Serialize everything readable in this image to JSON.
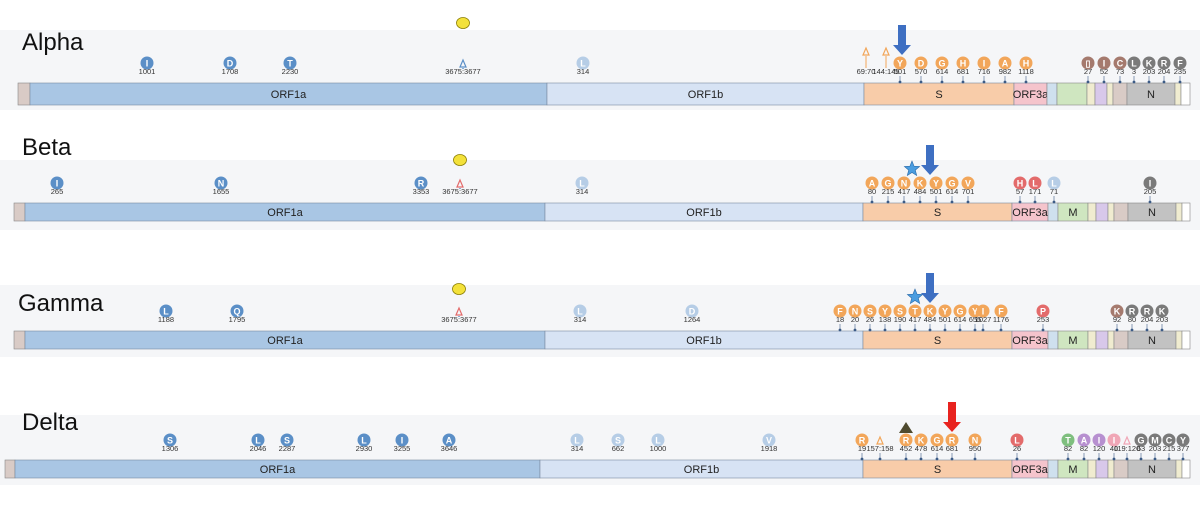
{
  "figure": {
    "type": "genome-mutation-map"
  },
  "gene_labels": {
    "orf1a": "ORF1a",
    "orf1b": "ORF1b",
    "s": "S",
    "orf3a": "ORF3a",
    "m": "M",
    "n": "N"
  },
  "colors": {
    "orf1a": "#a9c6e4",
    "orf1b": "#d7e3f4",
    "s": "#f8cca9",
    "orf3a": "#f5c4cc",
    "m": "#cfe6c0",
    "n": "#c2c2c2",
    "orf7a": "#d8c8ea",
    "small": "#f0ecd0",
    "utr": "#d9cbc6",
    "e": "#cfe0ee",
    "blue": "#5b8fc7",
    "lightblue": "#b6cde6",
    "orange": "#f2a65a",
    "red": "#e36b6b",
    "brown": "#a57a6e",
    "gray": "#7a7a7a",
    "purple": "#b790d0",
    "pink": "#f0a6b6",
    "green": "#7fbf7f",
    "yellow": "#f3e13a",
    "arrow_blue": "#3e6fc2",
    "arrow_red": "#e8231f",
    "star": "#4a9de0",
    "triangle": "#4e4a2e"
  },
  "variants": [
    {
      "name": "Alpha",
      "orf1b_mutations": [
        {
          "aa": "L",
          "pos": "314",
          "color": "lightblue"
        }
      ],
      "orf1a_mutations": [
        {
          "aa": "I",
          "pos": "1001",
          "color": "blue"
        },
        {
          "aa": "D",
          "pos": "1708",
          "color": "blue"
        },
        {
          "aa": "T",
          "pos": "2230",
          "color": "blue"
        }
      ],
      "deletion_label": "3675:3677",
      "s_deletion_labels": [
        "69:70",
        "144:145"
      ],
      "s_mutations": [
        {
          "aa": "Y",
          "pos": "501"
        },
        {
          "aa": "D",
          "pos": "570"
        },
        {
          "aa": "G",
          "pos": "614"
        },
        {
          "aa": "H",
          "pos": "681"
        },
        {
          "aa": "I",
          "pos": "716"
        },
        {
          "aa": "A",
          "pos": "982"
        },
        {
          "aa": "H",
          "pos": "1118"
        }
      ],
      "tail_mutations": [
        {
          "aa": "▯",
          "pos": "27",
          "color": "brown"
        },
        {
          "aa": "I",
          "pos": "52",
          "color": "brown"
        },
        {
          "aa": "C",
          "pos": "73",
          "color": "brown"
        },
        {
          "aa": "L",
          "pos": "3",
          "color": "gray"
        },
        {
          "aa": "K",
          "pos": "203",
          "color": "gray"
        },
        {
          "aa": "R",
          "pos": "204",
          "color": "gray"
        },
        {
          "aa": "F",
          "pos": "235",
          "color": "gray"
        }
      ]
    },
    {
      "name": "Beta",
      "orf1a_mutations": [
        {
          "aa": "I",
          "pos": "265",
          "color": "blue"
        },
        {
          "aa": "N",
          "pos": "1655",
          "color": "blue"
        },
        {
          "aa": "R",
          "pos": "3353",
          "color": "blue"
        }
      ],
      "deletion_label": "3675:3677",
      "orf1b_mutations": [
        {
          "aa": "L",
          "pos": "314",
          "color": "lightblue"
        }
      ],
      "s_mutations": [
        {
          "aa": "A",
          "pos": "80"
        },
        {
          "aa": "G",
          "pos": "215"
        },
        {
          "aa": "N",
          "pos": "417"
        },
        {
          "aa": "K",
          "pos": "484"
        },
        {
          "aa": "Y",
          "pos": "501"
        },
        {
          "aa": "G",
          "pos": "614"
        },
        {
          "aa": "V",
          "pos": "701"
        }
      ],
      "orf3a_mutations": [
        {
          "aa": "H",
          "pos": "57",
          "color": "red"
        },
        {
          "aa": "L",
          "pos": "171",
          "color": "red"
        }
      ],
      "e_mutations": [
        {
          "aa": "L",
          "pos": "71",
          "color": "lightblue"
        }
      ],
      "n_mutations": [
        {
          "aa": "I",
          "pos": "205",
          "color": "gray"
        }
      ]
    },
    {
      "name": "Gamma",
      "orf1a_mutations": [
        {
          "aa": "L",
          "pos": "1188",
          "color": "blue"
        },
        {
          "aa": "Q",
          "pos": "1795",
          "color": "blue"
        }
      ],
      "deletion_label": "3675:3677",
      "orf1b_mutations": [
        {
          "aa": "L",
          "pos": "314",
          "color": "lightblue"
        },
        {
          "aa": "D",
          "pos": "1264",
          "color": "lightblue"
        }
      ],
      "s_mutations": [
        {
          "aa": "F",
          "pos": "18"
        },
        {
          "aa": "N",
          "pos": "20"
        },
        {
          "aa": "S",
          "pos": "26"
        },
        {
          "aa": "Y",
          "pos": "138"
        },
        {
          "aa": "S",
          "pos": "190"
        },
        {
          "aa": "T",
          "pos": "417"
        },
        {
          "aa": "K",
          "pos": "484"
        },
        {
          "aa": "Y",
          "pos": "501"
        },
        {
          "aa": "G",
          "pos": "614"
        },
        {
          "aa": "Y",
          "pos": "655"
        }
      ],
      "s2_mutations": [
        {
          "aa": "I",
          "pos": "1027"
        },
        {
          "aa": "F",
          "pos": "1176"
        }
      ],
      "orf3a_mutations": [
        {
          "aa": "P",
          "pos": "253",
          "color": "red"
        }
      ],
      "tail_mutations": [
        {
          "aa": "K",
          "pos": "92",
          "color": "brown"
        },
        {
          "aa": "R",
          "pos": "80",
          "color": "gray"
        },
        {
          "aa": "R",
          "pos": "204",
          "color": "gray"
        },
        {
          "aa": "K",
          "pos": "203",
          "color": "gray"
        }
      ]
    },
    {
      "name": "Delta",
      "orf1a_mutations": [
        {
          "aa": "S",
          "pos": "1306",
          "color": "blue"
        },
        {
          "aa": "L",
          "pos": "2046",
          "color": "blue"
        },
        {
          "aa": "S",
          "pos": "2287",
          "color": "blue"
        },
        {
          "aa": "L",
          "pos": "2930",
          "color": "blue"
        },
        {
          "aa": "I",
          "pos": "3255",
          "color": "blue"
        },
        {
          "aa": "A",
          "pos": "3646",
          "color": "blue"
        }
      ],
      "orf1b_mutations": [
        {
          "aa": "L",
          "pos": "314",
          "color": "lightblue"
        },
        {
          "aa": "S",
          "pos": "662",
          "color": "lightblue"
        },
        {
          "aa": "L",
          "pos": "1000",
          "color": "lightblue"
        },
        {
          "aa": "V",
          "pos": "1918",
          "color": "lightblue"
        }
      ],
      "s_mutations": [
        {
          "aa": "R",
          "pos": "19"
        },
        {
          "aa": "",
          "pos": "157:158"
        },
        {
          "aa": "R",
          "pos": "452"
        },
        {
          "aa": "K",
          "pos": "478"
        },
        {
          "aa": "G",
          "pos": "614"
        },
        {
          "aa": "R",
          "pos": "681"
        },
        {
          "aa": "N",
          "pos": "950"
        }
      ],
      "orf3a_mutations": [
        {
          "aa": "L",
          "pos": "26",
          "color": "red"
        }
      ],
      "m_mutations": [
        {
          "aa": "T",
          "pos": "82",
          "color": "green"
        }
      ],
      "tail_mutations": [
        {
          "aa": "A",
          "pos": "82",
          "color": "purple"
        },
        {
          "aa": "I",
          "pos": "120",
          "color": "purple"
        },
        {
          "aa": "I",
          "pos": "40",
          "color": "pink"
        },
        {
          "aa": "",
          "pos": "119:120",
          "color": "pink"
        },
        {
          "aa": "G",
          "pos": "63",
          "color": "gray"
        },
        {
          "aa": "M",
          "pos": "203",
          "color": "gray"
        },
        {
          "aa": "C",
          "pos": "215",
          "color": "gray"
        },
        {
          "aa": "Y",
          "pos": "377",
          "color": "gray"
        }
      ]
    }
  ]
}
